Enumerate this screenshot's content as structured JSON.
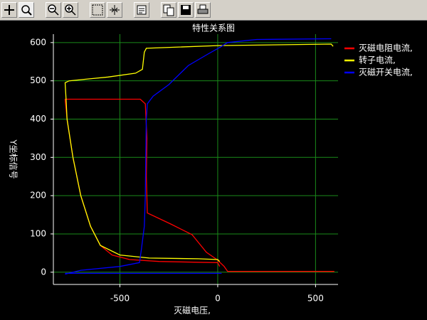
{
  "chart_data": {
    "type": "line",
    "title": "特性关系图",
    "x_label": "灭磁电压,",
    "y_label": "Y坐标信号",
    "xlim": [
      -840,
      615
    ],
    "ylim": [
      -32,
      622
    ],
    "xticks": [
      -500,
      0,
      500
    ],
    "yticks": [
      0,
      100,
      200,
      300,
      400,
      500,
      600
    ],
    "grid": true,
    "grid_color": "#1a8a1a",
    "background": "#000000",
    "legend": "right",
    "series": [
      {
        "name": "灭磁电阻电流,",
        "color": "#ff0000",
        "x": [
          596,
          51,
          33,
          -4,
          -58,
          -131,
          -240,
          -360,
          -365,
          -362,
          -370,
          -396,
          -780,
          -770,
          -740,
          -700,
          -650,
          -600,
          -540,
          -450,
          -300,
          -100,
          0,
          10
        ],
        "values": [
          2,
          2,
          15,
          33,
          52,
          98,
          126,
          155,
          250,
          350,
          440,
          452,
          452,
          400,
          300,
          200,
          120,
          70,
          45,
          33,
          28,
          26,
          25,
          15
        ]
      },
      {
        "name": "转子电流,",
        "color": "#ffff00",
        "x": [
          10,
          0,
          -100,
          -350,
          -500,
          -600,
          -650,
          -700,
          -740,
          -770,
          -775,
          -780,
          -760,
          -560,
          -420,
          -385,
          -375,
          -365,
          0,
          580,
          590
        ],
        "values": [
          28,
          33,
          35,
          37,
          45,
          70,
          120,
          200,
          300,
          400,
          450,
          495,
          500,
          510,
          520,
          530,
          575,
          585,
          592,
          596,
          590
        ]
      },
      {
        "name": "灭磁开关电流,",
        "color": "#0000ff",
        "x": [
          -780,
          -700,
          -500,
          -400,
          -390,
          -375,
          -370,
          -368,
          -365,
          -360,
          -330,
          -250,
          -150,
          -50,
          20,
          50,
          200,
          580,
          null,
          -780,
          0,
          20
        ],
        "values": [
          -5,
          5,
          15,
          25,
          60,
          120,
          200,
          300,
          400,
          440,
          460,
          490,
          540,
          570,
          590,
          600,
          608,
          610,
          null,
          -3,
          -3,
          -3
        ]
      }
    ]
  }
}
